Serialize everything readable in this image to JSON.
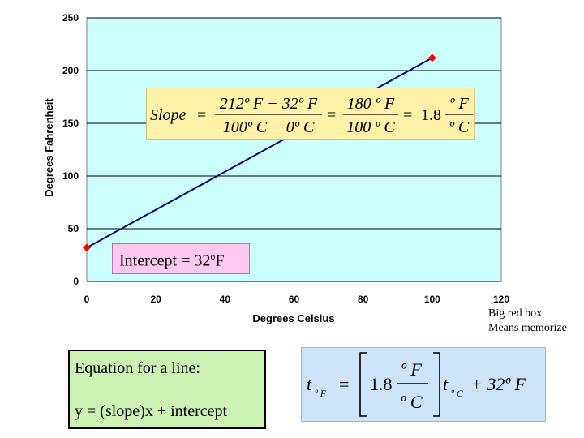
{
  "chart_data": {
    "type": "line",
    "title": "",
    "xlabel": "Degrees Celsius",
    "ylabel": "Degrees Fahrenheit",
    "xlim": [
      0,
      120
    ],
    "ylim": [
      0,
      250
    ],
    "x_ticks": [
      "0",
      "20",
      "40",
      "60",
      "80",
      "100",
      "120"
    ],
    "y_ticks": [
      "0",
      "50",
      "100",
      "150",
      "200",
      "250"
    ],
    "grid": "horizontal",
    "plot_background": "#ccffff",
    "series": [
      {
        "x": [
          0,
          100
        ],
        "y": [
          32,
          212
        ],
        "line_color": "#000080",
        "marker_color": "#ff0000",
        "marker": "diamond"
      }
    ]
  },
  "slope_equation": {
    "lhs": "Slope",
    "frac1_num": "212º F − 32º F",
    "frac1_den": "100º C − 0º C",
    "frac2_num": "180 º F",
    "frac2_den": "100 º C",
    "coef": "1.8",
    "frac3_num": "º F",
    "frac3_den": "º C",
    "eq": "="
  },
  "intercept": {
    "label": "Intercept = 32",
    "degree": "o",
    "unit": "F"
  },
  "note": {
    "line1": "Big red box",
    "line2": "Means memorize"
  },
  "equation_box": {
    "line1": "Equation for a line:",
    "line2": "y = (slope)x + intercept"
  },
  "formula": {
    "lhs_t": "t",
    "lhs_sub": "º F",
    "coef": "1.8",
    "frac_num": "º F",
    "frac_den": "º C",
    "rhs_t": "t",
    "rhs_sub": "º C",
    "plus": "+ 32º F",
    "eq": "="
  },
  "colors": {
    "plot_bg": "#ccffff",
    "slope_box": "#fff2a8",
    "intercept_box": "#ffc8f0",
    "equation_box": "#ccf2b3",
    "formula_box": "#cde3f7"
  }
}
